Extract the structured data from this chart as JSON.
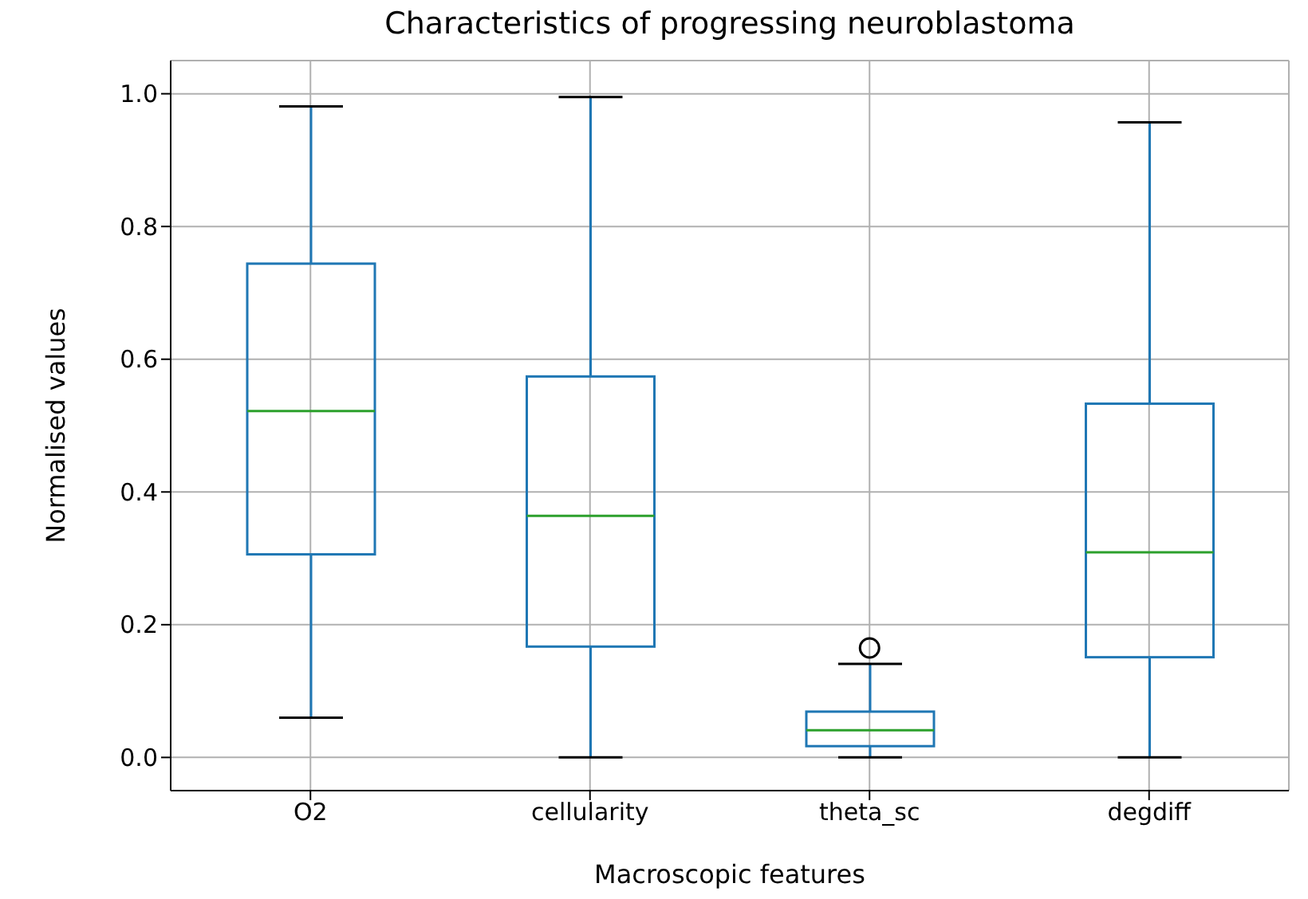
{
  "chart_data": {
    "type": "box",
    "title": "Characteristics of progressing neuroblastoma",
    "xlabel": "Macroscopic features",
    "ylabel": "Normalised values",
    "categories": [
      "O2",
      "cellularity",
      "theta_sc",
      "degdiff"
    ],
    "series": [
      {
        "color": "#1f77b4",
        "boxes": [
          {
            "low": 0.06,
            "q1": 0.306,
            "median": 0.522,
            "q3": 0.744,
            "high": 0.981
          },
          {
            "low": 0.0,
            "q1": 0.167,
            "median": 0.364,
            "q3": 0.574,
            "high": 0.995
          },
          {
            "low": 0.0,
            "q1": 0.017,
            "median": 0.041,
            "q3": 0.069,
            "high": 0.141,
            "outliers": [
              0.165
            ]
          },
          {
            "low": 0.0,
            "q1": 0.151,
            "median": 0.309,
            "q3": 0.533,
            "high": 0.957
          }
        ]
      }
    ],
    "ylim": [
      -0.05,
      1.05
    ],
    "yticks": [
      {
        "value": 0,
        "label": "0.0"
      },
      {
        "value": 0.2,
        "label": "0.2"
      },
      {
        "value": 0.4,
        "label": "0.4"
      },
      {
        "value": 0.6,
        "label": "0.6"
      },
      {
        "value": 0.8,
        "label": "0.8"
      },
      {
        "value": 1,
        "label": "1.0"
      }
    ],
    "grid": true,
    "legend": false
  }
}
